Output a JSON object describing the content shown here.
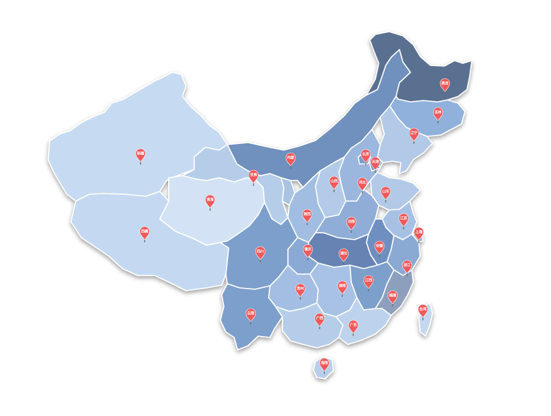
{
  "map": {
    "colors": {
      "land_light": "#c6daf1",
      "land_mid": "#9db7dc",
      "land_dark": "#7090bd",
      "land_darkest": "#5a7090",
      "marker": "#f0595b",
      "border": "#ffffff"
    },
    "markers": [
      {
        "label": "黑龙",
        "province": "heilongjiang"
      },
      {
        "label": "吉林",
        "province": "jilin"
      },
      {
        "label": "辽宁",
        "province": "liaoning"
      },
      {
        "label": "内蒙",
        "province": "neimenggu"
      },
      {
        "label": "北京",
        "province": "beijing"
      },
      {
        "label": "天津",
        "province": "tianjin"
      },
      {
        "label": "河北",
        "province": "hebei"
      },
      {
        "label": "山西",
        "province": "shanxi"
      },
      {
        "label": "山东",
        "province": "shandong"
      },
      {
        "label": "新疆",
        "province": "xinjiang"
      },
      {
        "label": "甘肃",
        "province": "gansu"
      },
      {
        "label": "青海",
        "province": "qinghai"
      },
      {
        "label": "西藏",
        "province": "xizang"
      },
      {
        "label": "陕西",
        "province": "shaanxi"
      },
      {
        "label": "河南",
        "province": "henan"
      },
      {
        "label": "江苏",
        "province": "jiangsu"
      },
      {
        "label": "上海",
        "province": "shanghai"
      },
      {
        "label": "四川",
        "province": "sichuan"
      },
      {
        "label": "重庆",
        "province": "chongqing"
      },
      {
        "label": "湖北",
        "province": "hubei"
      },
      {
        "label": "安徽",
        "province": "anhui"
      },
      {
        "label": "浙江",
        "province": "zhejiang"
      },
      {
        "label": "贵州",
        "province": "guizhou"
      },
      {
        "label": "湖南",
        "province": "hunan"
      },
      {
        "label": "江西",
        "province": "jiangxi"
      },
      {
        "label": "福建",
        "province": "fujian"
      },
      {
        "label": "云南",
        "province": "yunnan"
      },
      {
        "label": "广西",
        "province": "guangxi"
      },
      {
        "label": "广东",
        "province": "guangdong"
      },
      {
        "label": "台湾",
        "province": "taiwan"
      },
      {
        "label": "海南",
        "province": "hainan"
      }
    ]
  }
}
